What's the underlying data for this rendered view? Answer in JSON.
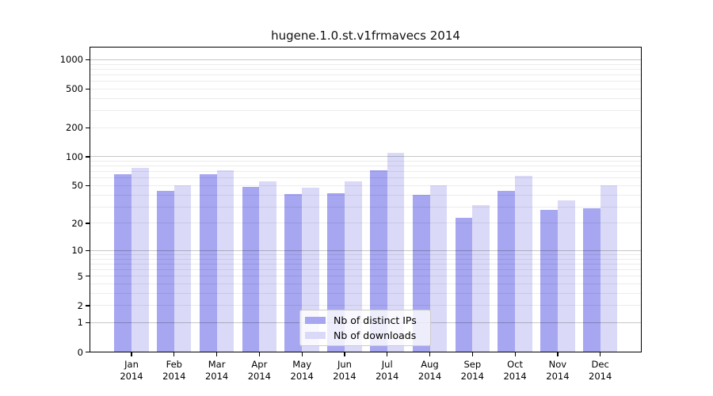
{
  "chart_data": {
    "type": "bar",
    "title": "hugene.1.0.st.v1frmavecs 2014",
    "categories": [
      "Jan",
      "Feb",
      "Mar",
      "Apr",
      "May",
      "Jun",
      "Jul",
      "Aug",
      "Sep",
      "Oct",
      "Nov",
      "Dec"
    ],
    "x_tick_second_line": "2014",
    "series": [
      {
        "name": "Nb of distinct IPs",
        "color": "#a6a6f1",
        "values": [
          66,
          44,
          66,
          49,
          41,
          42,
          72,
          40,
          23,
          44,
          28,
          29
        ]
      },
      {
        "name": "Nb of downloads",
        "color": "#dadaf8",
        "values": [
          76,
          50,
          72,
          56,
          48,
          55,
          110,
          50,
          31,
          64,
          35,
          50
        ]
      }
    ],
    "xlabel": "",
    "ylabel": "",
    "yscale": "log10(1+x)",
    "ylim": [
      0,
      1350
    ],
    "y_ticks": [
      0,
      1,
      2,
      5,
      10,
      20,
      50,
      100,
      200,
      500,
      1000
    ],
    "major_gridlines": [
      1,
      10,
      100,
      1000
    ],
    "grid": true,
    "legend_position": "lower-center-inside",
    "colors": {
      "major_grid": "#c9c9c9",
      "minor_grid": "#ececec",
      "axis": "#000000",
      "background": "#ffffff"
    }
  }
}
